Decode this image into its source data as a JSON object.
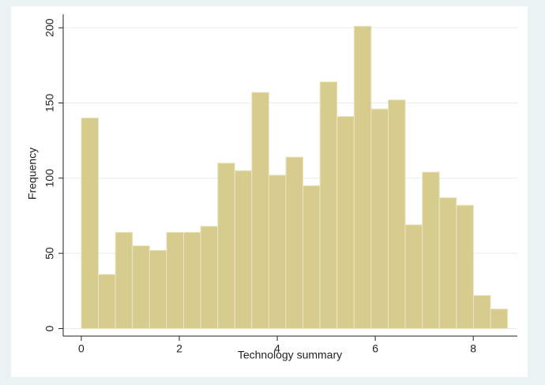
{
  "chart_data": {
    "type": "histogram",
    "x_label": "Technology summary",
    "y_label": "Frequency",
    "bins": [
      0,
      0.348,
      0.696,
      1.044,
      1.392,
      1.74,
      2.088,
      2.436,
      2.784,
      3.132,
      3.48,
      3.828,
      4.176,
      4.524,
      4.872,
      5.22,
      5.568,
      5.916,
      6.264,
      6.612,
      6.96,
      7.308,
      7.656,
      8.004,
      8.352,
      8.7
    ],
    "counts": [
      140,
      36,
      64,
      55,
      52,
      64,
      64,
      68,
      110,
      105,
      157,
      102,
      114,
      95,
      164,
      141,
      201,
      146,
      152,
      69,
      104,
      87,
      82,
      22,
      13
    ],
    "color": "#d6cc8e",
    "xlim": [
      -0.37,
      8.9
    ],
    "xticks": [
      0,
      2,
      4,
      6,
      8
    ],
    "ylim": [
      -5,
      209
    ],
    "yticks": [
      0,
      50,
      100,
      150,
      200
    ],
    "grid": true
  }
}
